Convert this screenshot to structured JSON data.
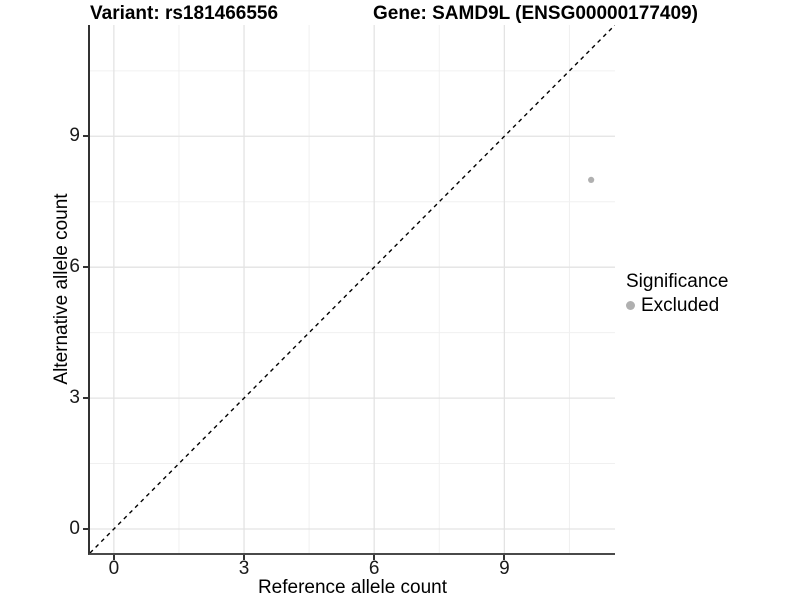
{
  "chart_data": {
    "type": "scatter",
    "titles": [
      "Variant: rs181466556",
      "Gene: SAMD9L (ENSG00000177409)"
    ],
    "xlabel": "Reference allele count",
    "ylabel": "Alternative allele count",
    "x_ticks": [
      0,
      3,
      6,
      9
    ],
    "y_ticks": [
      0,
      3,
      6,
      9
    ],
    "x_minor_ticks": [
      1.5,
      4.5,
      7.5,
      10.5
    ],
    "y_minor_ticks": [
      1.5,
      4.5,
      7.5,
      10.5
    ],
    "xlim": [
      -0.55,
      11.55
    ],
    "ylim": [
      -0.55,
      11.55
    ],
    "grid": true,
    "legend_position": "right",
    "legend": {
      "title": "Significance",
      "items": [
        {
          "label": "Excluded",
          "color": "#b0b0b0"
        }
      ]
    },
    "series": [
      {
        "name": "Excluded",
        "color": "#b0b0b0",
        "points": [
          {
            "x": 11,
            "y": 8
          }
        ]
      }
    ],
    "reference_line": {
      "kind": "identity y=x",
      "style": "dashed",
      "color": "#000000"
    },
    "colors": {
      "grid_major": "#e3e3e3",
      "grid_minor": "#f0f0f0",
      "axis_line": "#333333",
      "point": "#b0b0b0"
    }
  }
}
